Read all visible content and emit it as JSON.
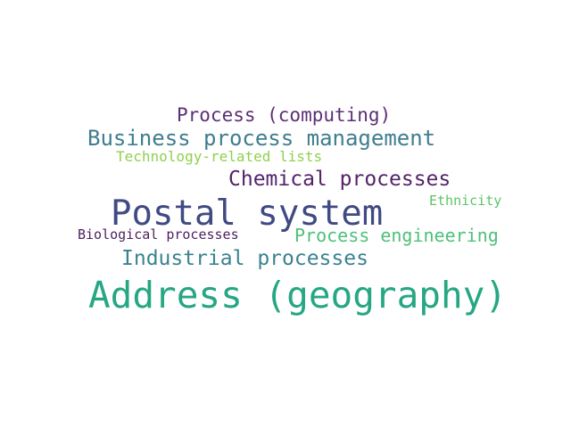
{
  "words": [
    {
      "text": "Process (computing)",
      "color": "#5b2f75"
    },
    {
      "text": "Business process management",
      "color": "#3f7d8f"
    },
    {
      "text": "Technology-related lists",
      "color": "#8fd14f"
    },
    {
      "text": "Chemical processes",
      "color": "#55236a"
    },
    {
      "text": "Ethnicity",
      "color": "#5cc567"
    },
    {
      "text": "Postal system",
      "color": "#404a83"
    },
    {
      "text": "Biological processes",
      "color": "#4d1f5f"
    },
    {
      "text": "Process engineering",
      "color": "#4fc07a"
    },
    {
      "text": "Industrial processes",
      "color": "#3a8291"
    },
    {
      "text": "Address (geography)",
      "color": "#26a784"
    }
  ]
}
